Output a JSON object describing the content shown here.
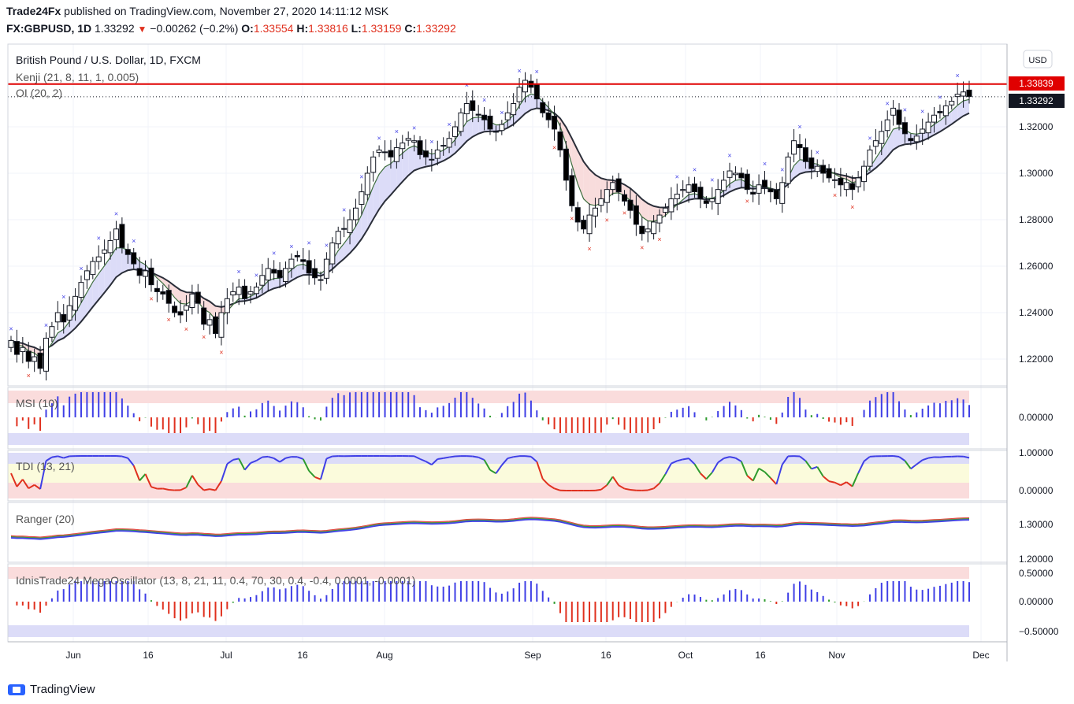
{
  "header": {
    "publisher": "Trade24Fx",
    "published_text": "published on TradingView.com, November 27, 2020 14:11:12 MSK",
    "symbol": "FX:GBPUSD, 1D",
    "last": "1.33292",
    "change": "−0.00262 (−0.2%)",
    "o_label": "O:",
    "o": "1.33554",
    "h_label": "H:",
    "h": "1.33816",
    "l_label": "L:",
    "l": "1.33159",
    "c_label": "C:",
    "c": "1.33292"
  },
  "legend": {
    "instrument": "British Pound / U.S. Dollar, 1D, FXCM",
    "kenji": "Kenji (21, 8, 11, 1, 0.005)",
    "oi": "OI (20, 2)",
    "currency_button": "USD"
  },
  "price_labels": {
    "red_line": "1.33839",
    "last_price": "1.33292"
  },
  "panes": {
    "msi": "MSI (10)",
    "tdi": "TDI (13, 21)",
    "ranger": "Ranger (20)",
    "mega": "IdnisTrade24 MegaOscillator (13, 8, 21, 11, 0.4, 70, 30, 0.4, -0.4, 0.0001, -0.0001)"
  },
  "footer": {
    "brand": "TradingView"
  },
  "colors": {
    "up": "#ffffff",
    "down": "#000000",
    "resistance": "#e00000",
    "blue": "#3f3fe6",
    "red": "#e0301e",
    "green": "#2e9b2e",
    "band": "#dcdcf8"
  },
  "chart_data": [
    {
      "type": "candlestick",
      "title": "British Pound / U.S. Dollar, 1D, FXCM",
      "x_ticks": [
        "Jun",
        "16",
        "Jul",
        "16",
        "Aug",
        "Sep",
        "16",
        "Oct",
        "16",
        "Nov",
        "Dec"
      ],
      "y_ticks": [
        "1.22000",
        "1.24000",
        "1.26000",
        "1.28000",
        "1.30000",
        "1.32000"
      ],
      "ylim": [
        1.21,
        1.345
      ],
      "close": [
        1.228,
        1.222,
        1.225,
        1.219,
        1.221,
        1.216,
        1.229,
        1.234,
        1.24,
        1.236,
        1.243,
        1.247,
        1.253,
        1.258,
        1.262,
        1.264,
        1.267,
        1.271,
        1.276,
        1.268,
        1.265,
        1.261,
        1.256,
        1.258,
        1.252,
        1.249,
        1.248,
        1.244,
        1.24,
        1.239,
        1.243,
        1.248,
        1.244,
        1.235,
        1.237,
        1.231,
        1.24,
        1.246,
        1.249,
        1.251,
        1.246,
        1.249,
        1.251,
        1.256,
        1.259,
        1.257,
        1.255,
        1.259,
        1.263,
        1.264,
        1.262,
        1.257,
        1.255,
        1.254,
        1.263,
        1.27,
        1.275,
        1.276,
        1.28,
        1.285,
        1.292,
        1.3,
        1.307,
        1.31,
        1.309,
        1.307,
        1.311,
        1.313,
        1.315,
        1.314,
        1.308,
        1.307,
        1.306,
        1.31,
        1.312,
        1.315,
        1.32,
        1.326,
        1.33,
        1.327,
        1.325,
        1.323,
        1.319,
        1.318,
        1.321,
        1.326,
        1.33,
        1.337,
        1.34,
        1.337,
        1.332,
        1.326,
        1.323,
        1.319,
        1.31,
        1.297,
        1.286,
        1.279,
        1.276,
        1.282,
        1.285,
        1.289,
        1.293,
        1.296,
        1.292,
        1.288,
        1.284,
        1.278,
        1.274,
        1.276,
        1.279,
        1.282,
        1.285,
        1.289,
        1.291,
        1.293,
        1.295,
        1.292,
        1.289,
        1.287,
        1.289,
        1.293,
        1.297,
        1.301,
        1.3,
        1.298,
        1.293,
        1.291,
        1.295,
        1.294,
        1.292,
        1.289,
        1.296,
        1.307,
        1.314,
        1.311,
        1.305,
        1.302,
        1.303,
        1.3,
        1.298,
        1.297,
        1.295,
        1.296,
        1.293,
        1.298,
        1.303,
        1.31,
        1.314,
        1.318,
        1.323,
        1.328,
        1.321,
        1.317,
        1.314,
        1.316,
        1.319,
        1.322,
        1.325,
        1.326,
        1.329,
        1.331,
        1.334,
        1.335,
        1.333
      ],
      "resistance": 1.33839,
      "last": 1.33292
    },
    {
      "type": "bar",
      "title": "MSI (10)",
      "y_ticks": [
        "0.00000"
      ]
    },
    {
      "type": "line",
      "title": "TDI (13, 21)",
      "y_ticks": [
        "1.00000",
        "0.00000"
      ]
    },
    {
      "type": "line",
      "title": "Ranger (20)",
      "y_ticks": [
        "1.30000",
        "1.20000"
      ]
    },
    {
      "type": "bar",
      "title": "IdnisTrade24 MegaOscillator (13, 8, 21, 11, 0.4, 70, 30, 0.4, -0.4, 0.0001, -0.0001)",
      "y_ticks": [
        "0.50000",
        "0.00000",
        "−0.50000"
      ]
    }
  ]
}
